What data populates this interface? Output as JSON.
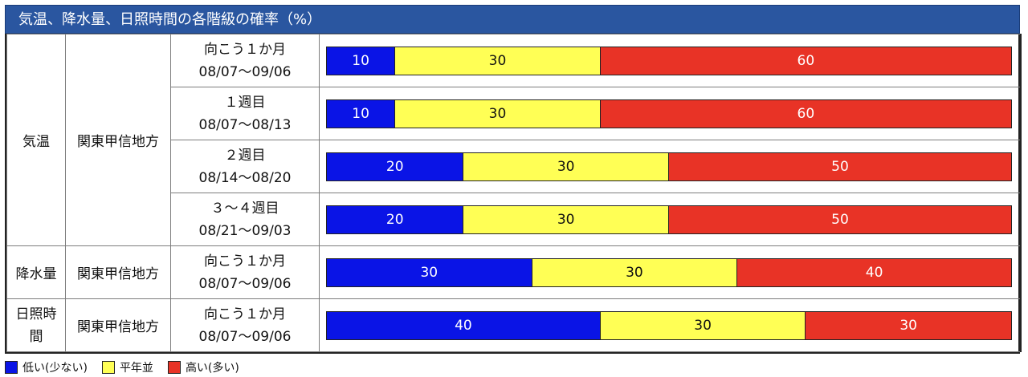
{
  "title": "気温、降水量、日照時間の各階級の確率（%）",
  "legend": [
    {
      "label": "低い(少ない)",
      "color": "#0a14e6"
    },
    {
      "label": "平年並",
      "color": "#ffff55"
    },
    {
      "label": "高い(多い)",
      "color": "#e83326"
    }
  ],
  "chart_data": {
    "type": "bar",
    "stacked": true,
    "categories_labels": [
      "低い(少ない)",
      "平年並",
      "高い(多い)"
    ],
    "rows": [
      {
        "element": "気温",
        "region": "関東甲信地方",
        "period": "向こう１か月",
        "dates": "08/07〜09/06",
        "values": [
          10,
          30,
          60
        ]
      },
      {
        "element": "気温",
        "region": "関東甲信地方",
        "period": "１週目",
        "dates": "08/07〜08/13",
        "values": [
          10,
          30,
          60
        ]
      },
      {
        "element": "気温",
        "region": "関東甲信地方",
        "period": "２週目",
        "dates": "08/14〜08/20",
        "values": [
          20,
          30,
          50
        ]
      },
      {
        "element": "気温",
        "region": "関東甲信地方",
        "period": "３〜４週目",
        "dates": "08/21〜09/03",
        "values": [
          20,
          30,
          50
        ]
      },
      {
        "element": "降水量",
        "region": "関東甲信地方",
        "period": "向こう１か月",
        "dates": "08/07〜09/06",
        "values": [
          30,
          30,
          40
        ]
      },
      {
        "element": "日照時間",
        "region": "関東甲信地方",
        "period": "向こう１か月",
        "dates": "08/07〜09/06",
        "values": [
          40,
          30,
          30
        ]
      }
    ]
  }
}
